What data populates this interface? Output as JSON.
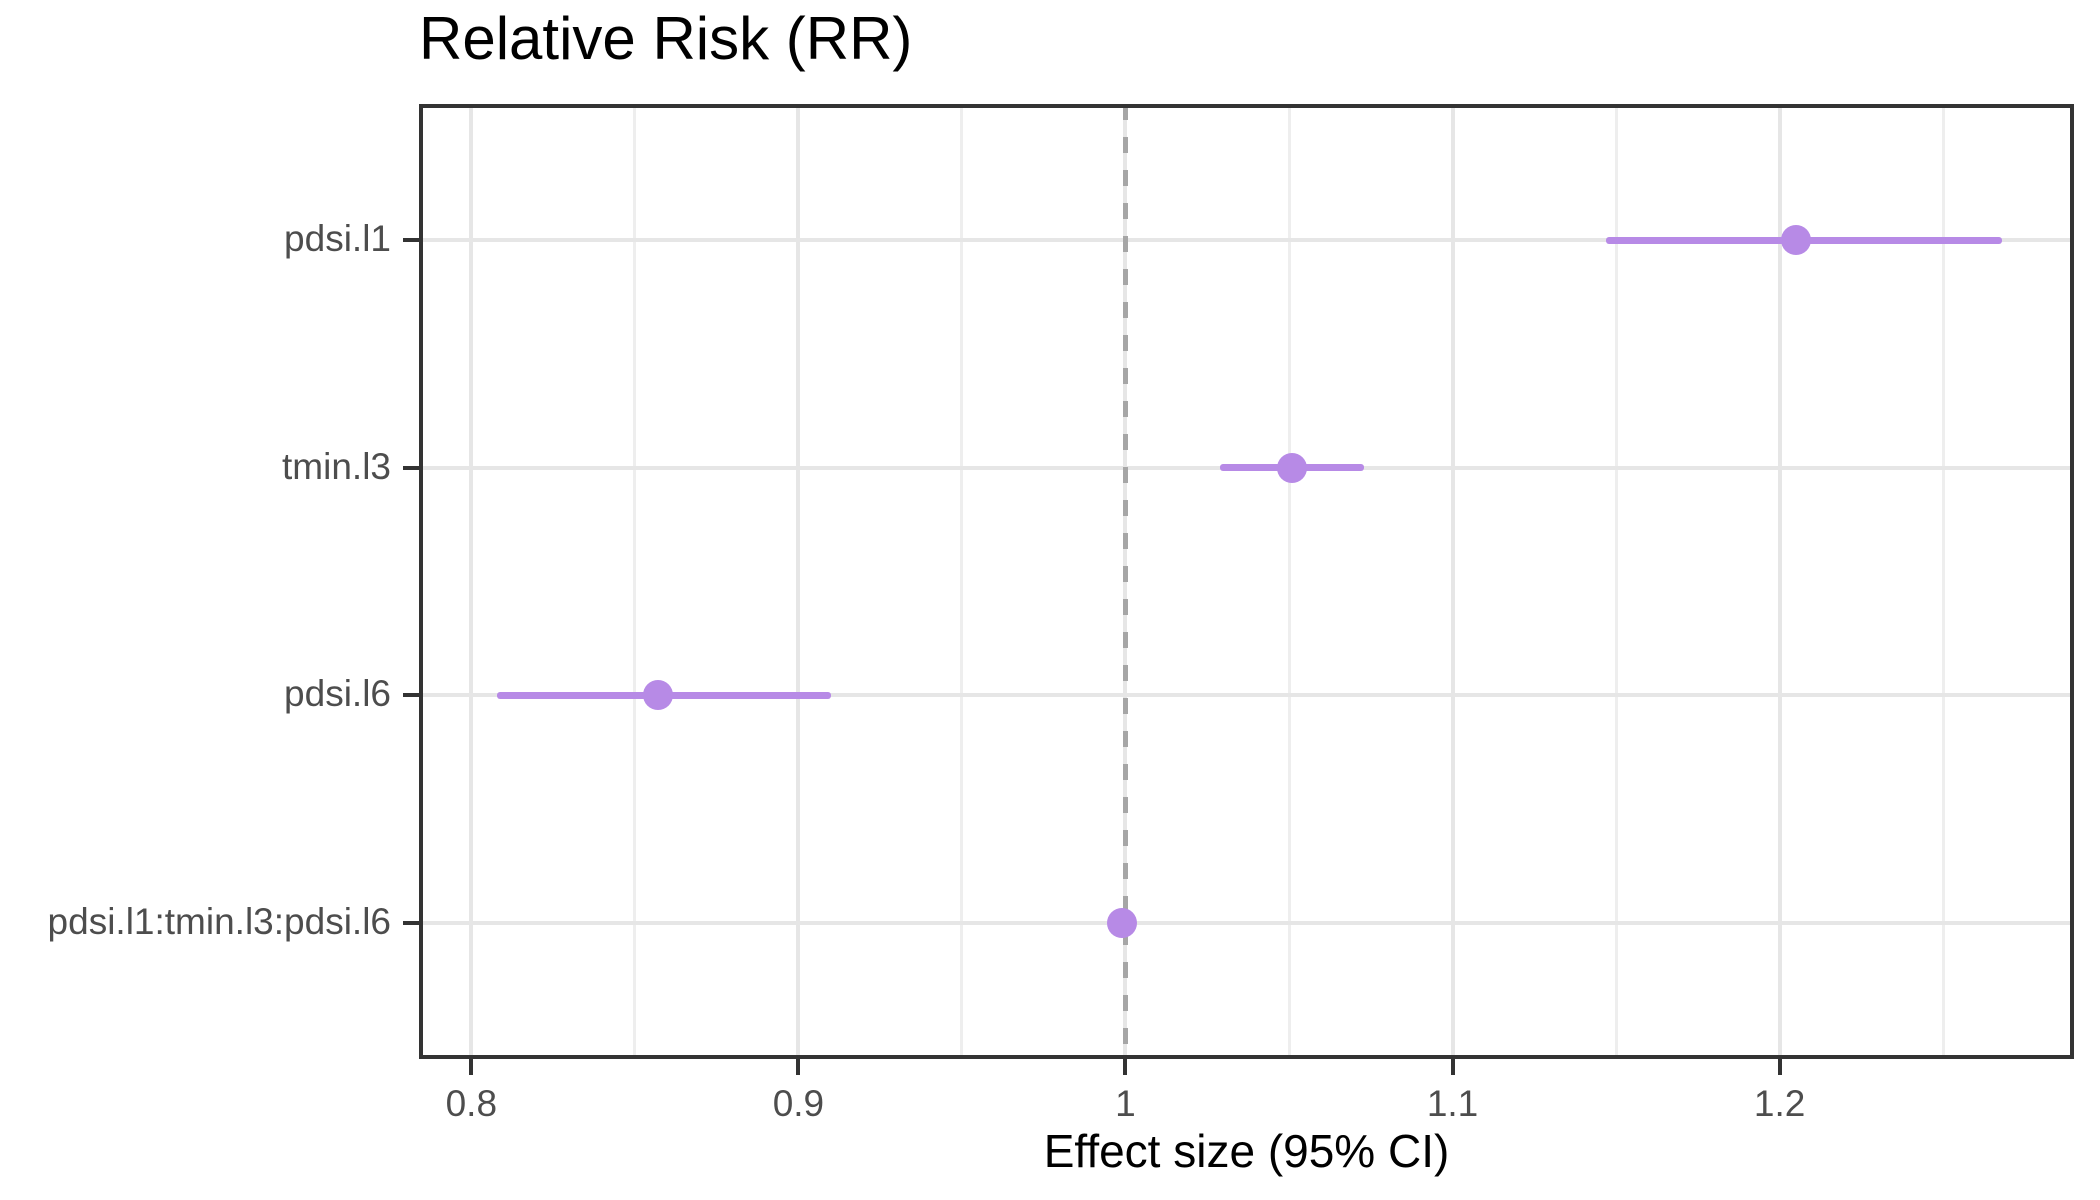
{
  "chart_data": {
    "type": "scatter",
    "subtype": "forest-plot",
    "title": "Relative Risk (RR)",
    "xlabel": "Effect size (95% CI)",
    "ylabel": "",
    "categories": [
      "pdsi.l1",
      "tmin.l3",
      "pdsi.l6",
      "pdsi.l1:tmin.l3:pdsi.l6"
    ],
    "points": [
      {
        "label": "pdsi.l1",
        "estimate": 1.205,
        "ci_low": 1.147,
        "ci_high": 1.268
      },
      {
        "label": "tmin.l3",
        "estimate": 1.051,
        "ci_low": 1.029,
        "ci_high": 1.073
      },
      {
        "label": "pdsi.l6",
        "estimate": 0.857,
        "ci_low": 0.808,
        "ci_high": 0.91
      },
      {
        "label": "pdsi.l1:tmin.l3:pdsi.l6",
        "estimate": 0.999,
        "ci_low": 0.996,
        "ci_high": 1.002
      }
    ],
    "xlim": [
      0.784,
      1.29
    ],
    "x_ticks": [
      0.8,
      0.9,
      1.0,
      1.1,
      1.2
    ],
    "x_tick_labels": [
      "0.8",
      "0.9",
      "1",
      "1.1",
      "1.2"
    ],
    "x_minor_ticks": [
      0.85,
      0.95,
      1.05,
      1.15,
      1.25
    ],
    "reference_line": 1,
    "grid": true,
    "legend": false
  },
  "colors": {
    "point": "#b78ae6",
    "ci_line": "#b78ae6",
    "reference_line": "#a6a6a6",
    "grid_major": "#e6e6e6",
    "grid_minor": "#eeeeee",
    "panel_border": "#333333",
    "axis_text": "#4d4d4d",
    "title_text": "#000000",
    "background": "#ffffff"
  }
}
